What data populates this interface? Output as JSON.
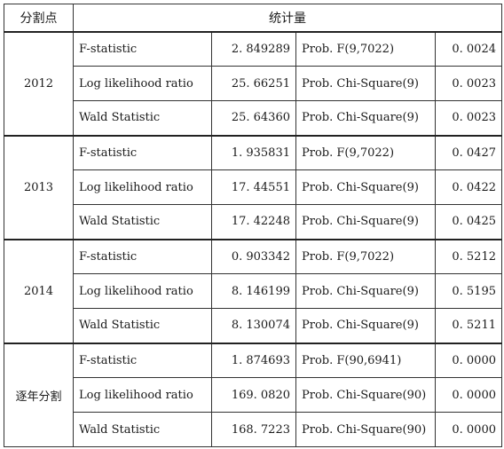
{
  "table": {
    "header": {
      "split_point": "分割点",
      "statistic": "统计量"
    },
    "groups": [
      {
        "label": "2012",
        "rows": [
          {
            "name": "F-statistic",
            "value": "2. 849289",
            "test": "Prob. F(9,7022)",
            "prob": "0. 0024"
          },
          {
            "name": "Log likelihood ratio",
            "value": "25. 66251",
            "test": "Prob. Chi-Square(9)",
            "prob": "0. 0023"
          },
          {
            "name": "Wald Statistic",
            "value": "25. 64360",
            "test": "Prob. Chi-Square(9)",
            "prob": "0. 0023"
          }
        ]
      },
      {
        "label": "2013",
        "rows": [
          {
            "name": "F-statistic",
            "value": "1. 935831",
            "test": "Prob. F(9,7022)",
            "prob": "0. 0427"
          },
          {
            "name": "Log likelihood ratio",
            "value": "17. 44551",
            "test": "Prob. Chi-Square(9)",
            "prob": "0. 0422"
          },
          {
            "name": "Wald Statistic",
            "value": "17. 42248",
            "test": "Prob. Chi-Square(9)",
            "prob": "0. 0425"
          }
        ]
      },
      {
        "label": "2014",
        "rows": [
          {
            "name": "F-statistic",
            "value": "0. 903342",
            "test": "Prob. F(9,7022)",
            "prob": "0. 5212"
          },
          {
            "name": "Log likelihood ratio",
            "value": "8. 146199",
            "test": "Prob. Chi-Square(9)",
            "prob": "0. 5195"
          },
          {
            "name": "Wald Statistic",
            "value": "8. 130074",
            "test": "Prob. Chi-Square(9)",
            "prob": "0. 5211"
          }
        ]
      },
      {
        "label": "逐年分割",
        "rows": [
          {
            "name": "F-statistic",
            "value": "1. 874693",
            "test": "Prob. F(90,6941)",
            "prob": "0. 0000"
          },
          {
            "name": "Log likelihood ratio",
            "value": "169. 0820",
            "test": "Prob. Chi-Square(90)",
            "prob": "0. 0000"
          },
          {
            "name": "Wald Statistic",
            "value": "168. 7223",
            "test": "Prob. Chi-Square(90)",
            "prob": "0. 0000"
          }
        ]
      }
    ]
  }
}
